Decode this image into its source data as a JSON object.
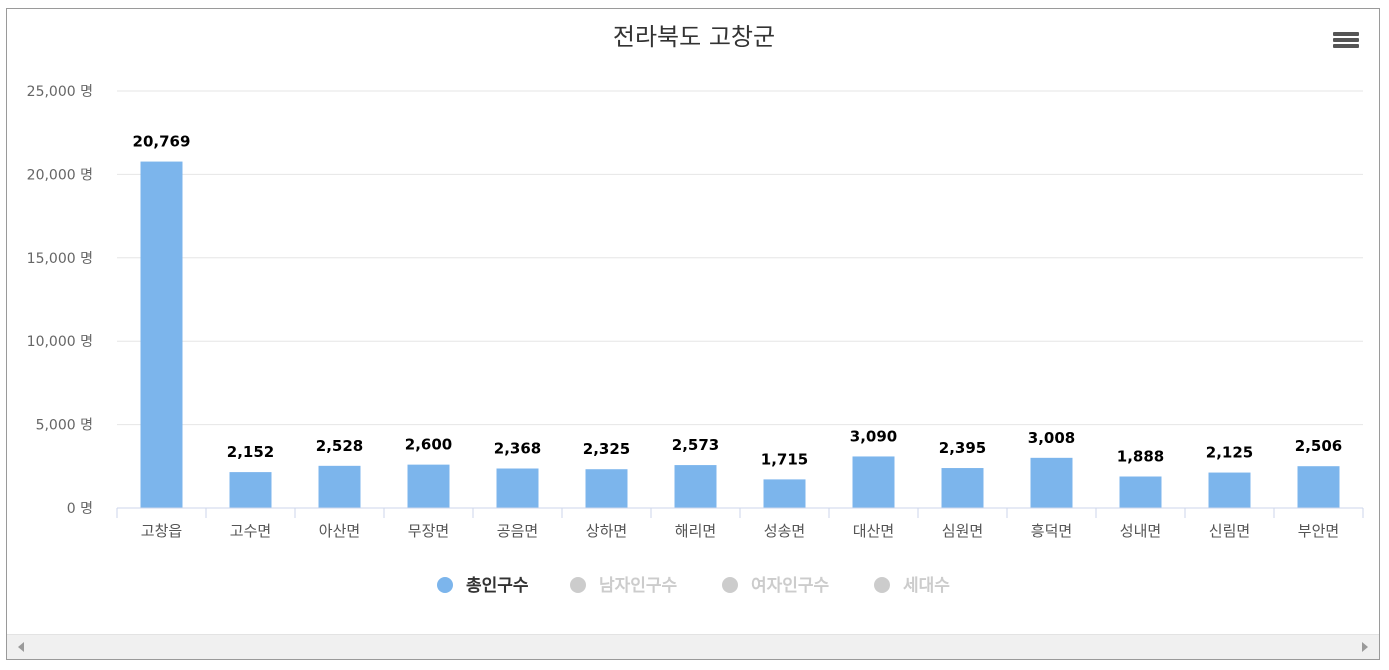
{
  "title": "전라북도 고창군",
  "legend": [
    {
      "label": "총인구수",
      "color": "#7cb5ec",
      "active": true
    },
    {
      "label": "남자인구수",
      "color": "#cccccc",
      "active": false
    },
    {
      "label": "여자인구수",
      "color": "#cccccc",
      "active": false
    },
    {
      "label": "세대수",
      "color": "#cccccc",
      "active": false
    }
  ],
  "chart_data": {
    "type": "bar",
    "title": "전라북도 고창군",
    "categories": [
      "고창읍",
      "고수면",
      "아산면",
      "무장면",
      "공음면",
      "상하면",
      "해리면",
      "성송면",
      "대산면",
      "심원면",
      "흥덕면",
      "성내면",
      "신림면",
      "부안면"
    ],
    "series": [
      {
        "name": "총인구수",
        "color": "#7cb5ec",
        "values": [
          20769,
          2152,
          2528,
          2600,
          2368,
          2325,
          2573,
          1715,
          3090,
          2395,
          3008,
          1888,
          2125,
          2506
        ]
      }
    ],
    "y_ticks": [
      "0 명",
      "5,000 명",
      "10,000 명",
      "15,000 명",
      "20,000 명",
      "25,000 명"
    ],
    "ylim": [
      0,
      25000
    ],
    "grid": true,
    "legend_position": "bottom"
  }
}
